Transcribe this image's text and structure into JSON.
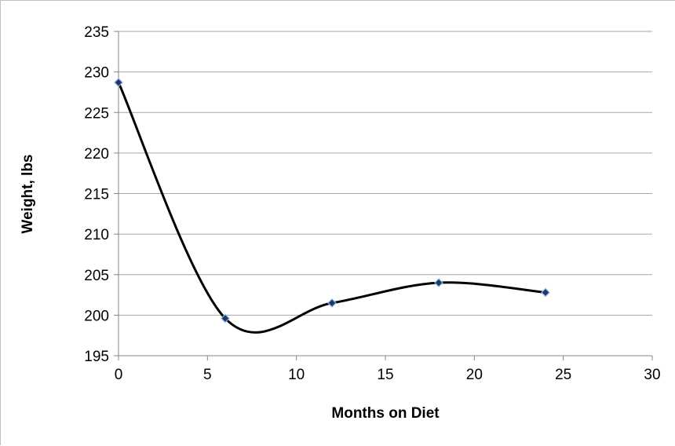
{
  "chart_data": {
    "type": "scatter",
    "title": "",
    "xlabel": "Months on Diet",
    "ylabel": "Weight, lbs",
    "xlim": [
      0,
      30
    ],
    "ylim": [
      195,
      235
    ],
    "x_ticks": [
      0,
      5,
      10,
      15,
      20,
      25,
      30
    ],
    "y_ticks": [
      195,
      200,
      205,
      210,
      215,
      220,
      225,
      230,
      235
    ],
    "grid": "horizontal",
    "legend": "none",
    "line_style": "smoothed",
    "series": [
      {
        "x": [
          0,
          6,
          12,
          18,
          24
        ],
        "y": [
          228.7,
          199.6,
          201.5,
          204.0,
          202.8
        ]
      }
    ],
    "colors": {
      "line": "#000000",
      "marker_fill": "#1f3864",
      "marker_edge": "#8db3e2",
      "grid": "#a6a6a6"
    }
  }
}
